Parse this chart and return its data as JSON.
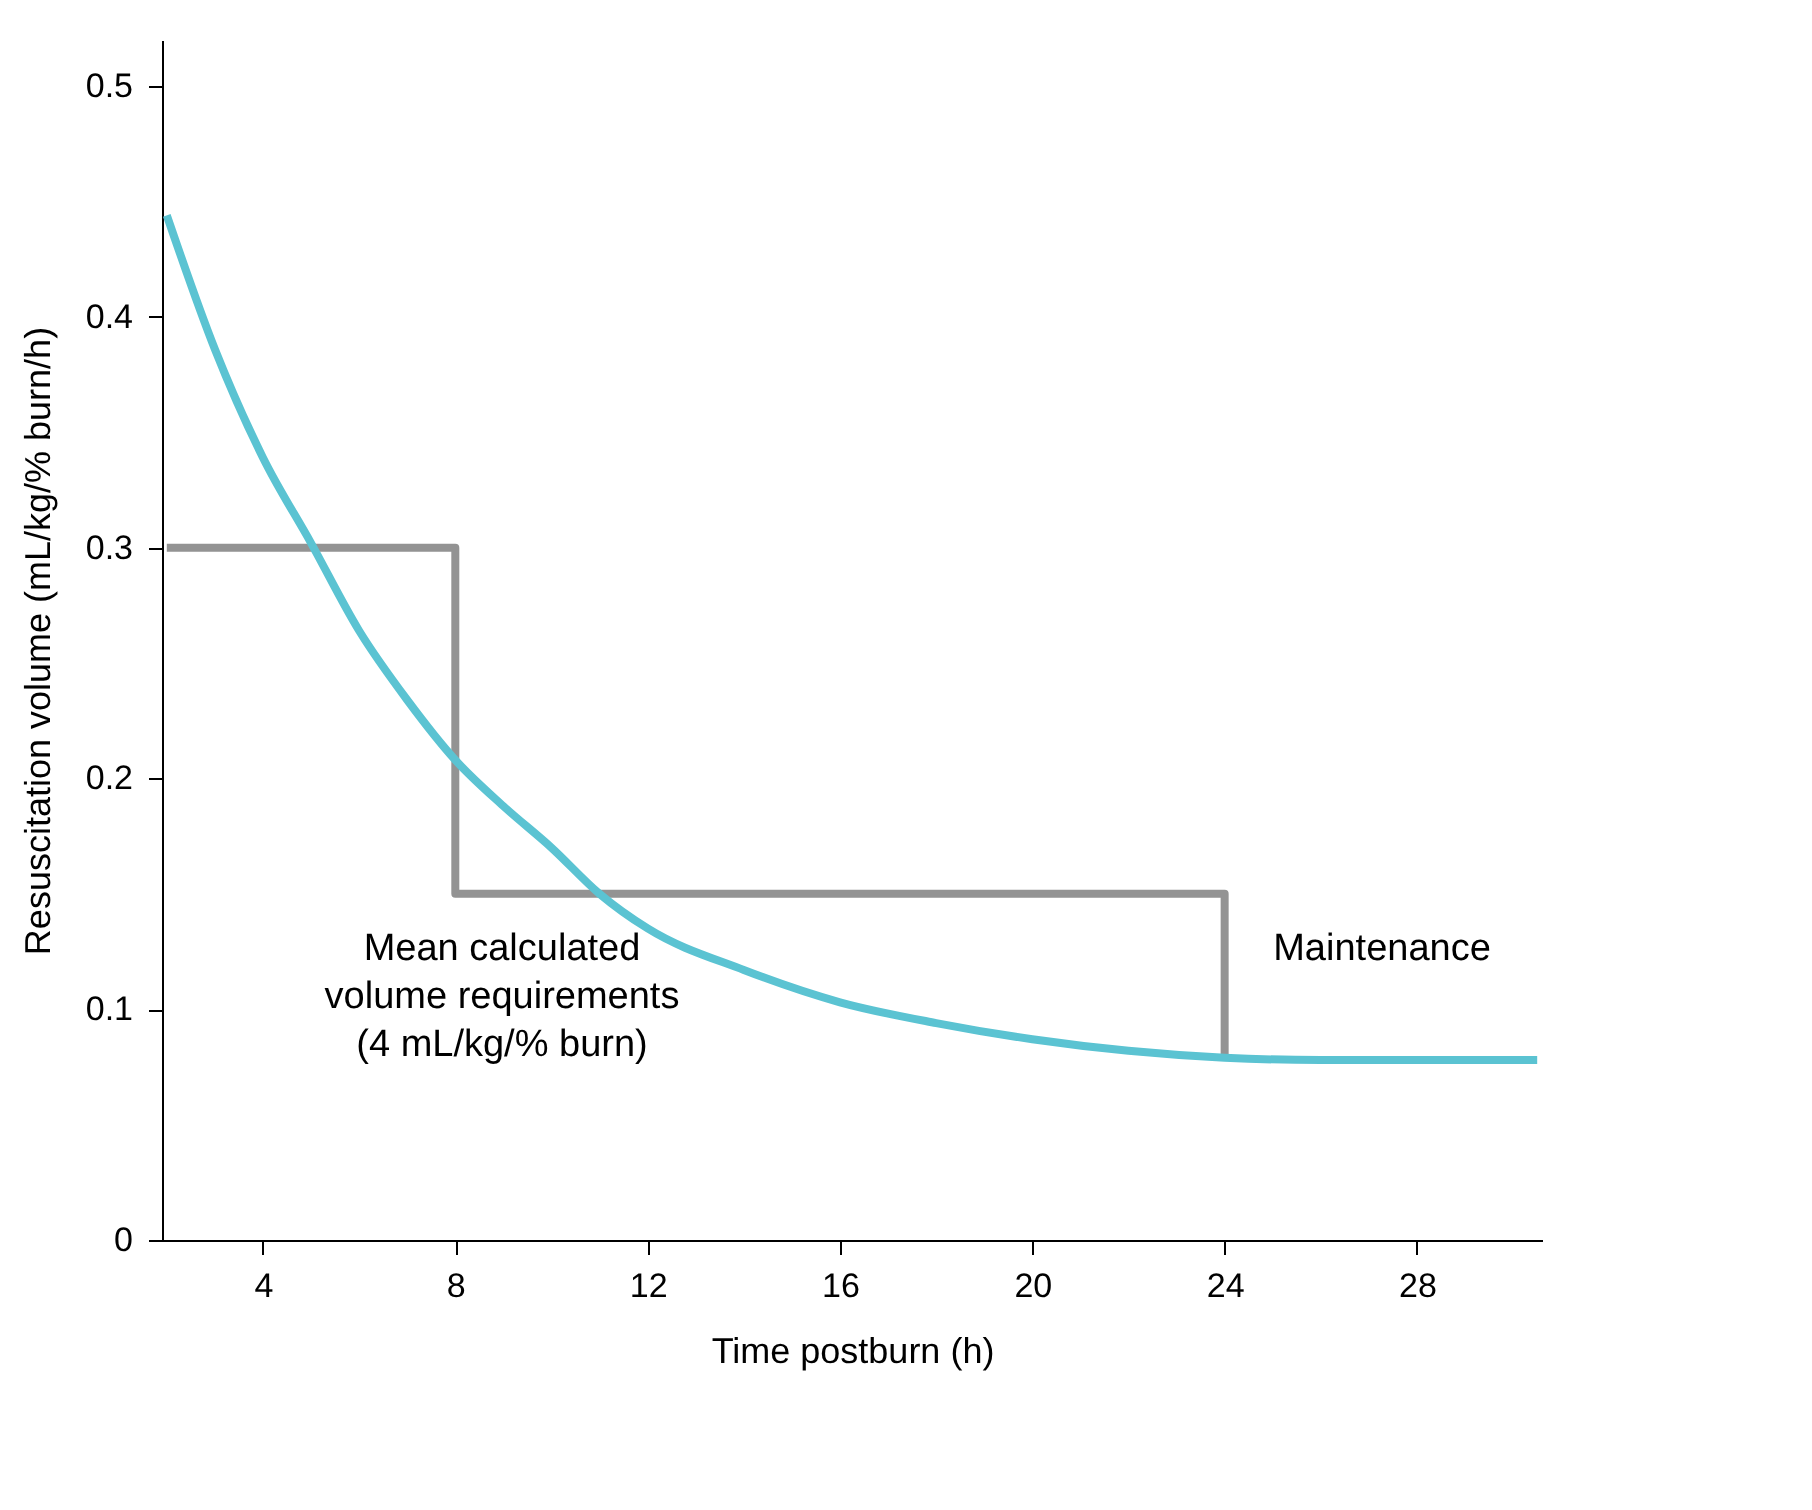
{
  "chart_data": {
    "type": "line",
    "xlabel": "Time postburn (h)",
    "ylabel": "Resuscitation volume (mL/kg/% burn/h)",
    "xlim": [
      1.9,
      30.6
    ],
    "ylim": [
      0,
      0.52
    ],
    "xticks": [
      4,
      8,
      12,
      16,
      20,
      24,
      28
    ],
    "yticks": [
      0,
      0.1,
      0.2,
      0.3,
      0.4,
      0.5
    ],
    "grid": false,
    "series": [
      {
        "type": "step",
        "color": "#939393",
        "x": [
          2,
          8,
          24
        ],
        "values": [
          0.3,
          0.15,
          0.078
        ]
      },
      {
        "color": "#5bc3d2",
        "x": [
          2,
          3,
          4,
          5,
          6,
          7,
          8,
          9,
          10,
          11,
          12,
          14,
          16,
          18,
          20,
          22,
          24,
          26,
          28,
          30.5
        ],
        "values": [
          0.444,
          0.386,
          0.339,
          0.302,
          0.264,
          0.234,
          0.208,
          0.188,
          0.17,
          0.15,
          0.135,
          0.117,
          0.103,
          0.094,
          0.087,
          0.082,
          0.079,
          0.078,
          0.078,
          0.078
        ]
      }
    ],
    "annotations": [
      "Mean calculated\nvolume requirements\n(4 mL/kg/% burn)",
      "Maintenance"
    ]
  }
}
